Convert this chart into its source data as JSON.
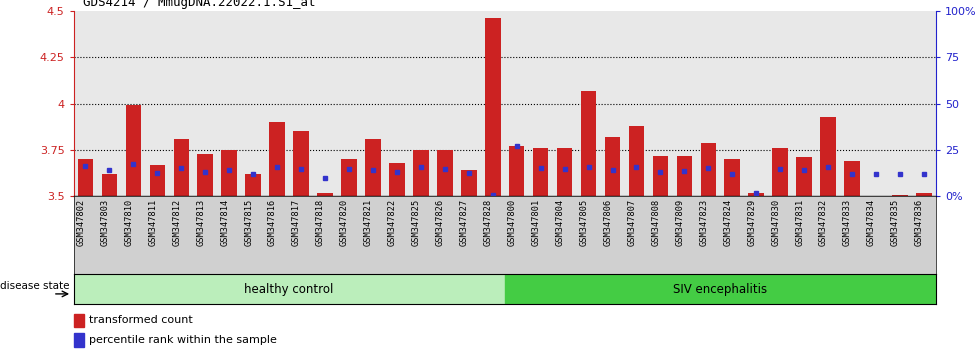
{
  "title": "GDS4214 / MmugDNA.22022.1.S1_at",
  "samples": [
    "GSM347802",
    "GSM347803",
    "GSM347810",
    "GSM347811",
    "GSM347812",
    "GSM347813",
    "GSM347814",
    "GSM347815",
    "GSM347816",
    "GSM347817",
    "GSM347818",
    "GSM347820",
    "GSM347821",
    "GSM347822",
    "GSM347825",
    "GSM347826",
    "GSM347827",
    "GSM347828",
    "GSM347800",
    "GSM347801",
    "GSM347804",
    "GSM347805",
    "GSM347806",
    "GSM347807",
    "GSM347808",
    "GSM347809",
    "GSM347823",
    "GSM347824",
    "GSM347829",
    "GSM347830",
    "GSM347831",
    "GSM347832",
    "GSM347833",
    "GSM347834",
    "GSM347835",
    "GSM347836"
  ],
  "red_values": [
    3.7,
    3.62,
    3.99,
    3.67,
    3.81,
    3.73,
    3.75,
    3.62,
    3.9,
    3.85,
    3.52,
    3.7,
    3.81,
    3.68,
    3.75,
    3.75,
    3.64,
    4.46,
    3.77,
    3.76,
    3.76,
    4.07,
    3.82,
    3.88,
    3.72,
    3.72,
    3.79,
    3.7,
    3.52,
    3.76,
    3.71,
    3.93,
    3.69,
    3.5,
    3.51,
    3.52
  ],
  "blue_values": [
    3.665,
    3.64,
    3.675,
    3.625,
    3.655,
    3.63,
    3.64,
    3.62,
    3.66,
    3.65,
    3.6,
    3.65,
    3.645,
    3.632,
    3.66,
    3.65,
    3.628,
    3.51,
    3.77,
    3.652,
    3.648,
    3.66,
    3.642,
    3.658,
    3.632,
    3.635,
    3.651,
    3.622,
    3.52,
    3.65,
    3.642,
    3.66,
    3.622,
    3.622,
    3.622,
    3.622
  ],
  "ylim": [
    3.5,
    4.5
  ],
  "yticks_left": [
    3.5,
    3.75,
    4.0,
    4.25,
    4.5
  ],
  "ytick_labels_left": [
    "3.5",
    "3.75",
    "4",
    "4.25",
    "4.5"
  ],
  "yticks_right_pct": [
    0,
    25,
    50,
    75,
    100
  ],
  "ytick_labels_right": [
    "0%",
    "25",
    "50",
    "75",
    "100%"
  ],
  "healthy_count": 18,
  "healthy_label": "healthy control",
  "siv_label": "SIV encephalitis",
  "disease_state_label": "disease state",
  "legend_red": "transformed count",
  "legend_blue": "percentile rank within the sample",
  "bar_color": "#cc2222",
  "dot_color": "#3333cc",
  "healthy_bg": "#bbeebb",
  "siv_bg": "#44cc44",
  "axis_bg": "#e8e8e8",
  "xtick_bg": "#d0d0d0",
  "left_tick_color": "#cc2222",
  "right_tick_color": "#2222cc",
  "title_color": "#000000",
  "grid_color": "#000000"
}
